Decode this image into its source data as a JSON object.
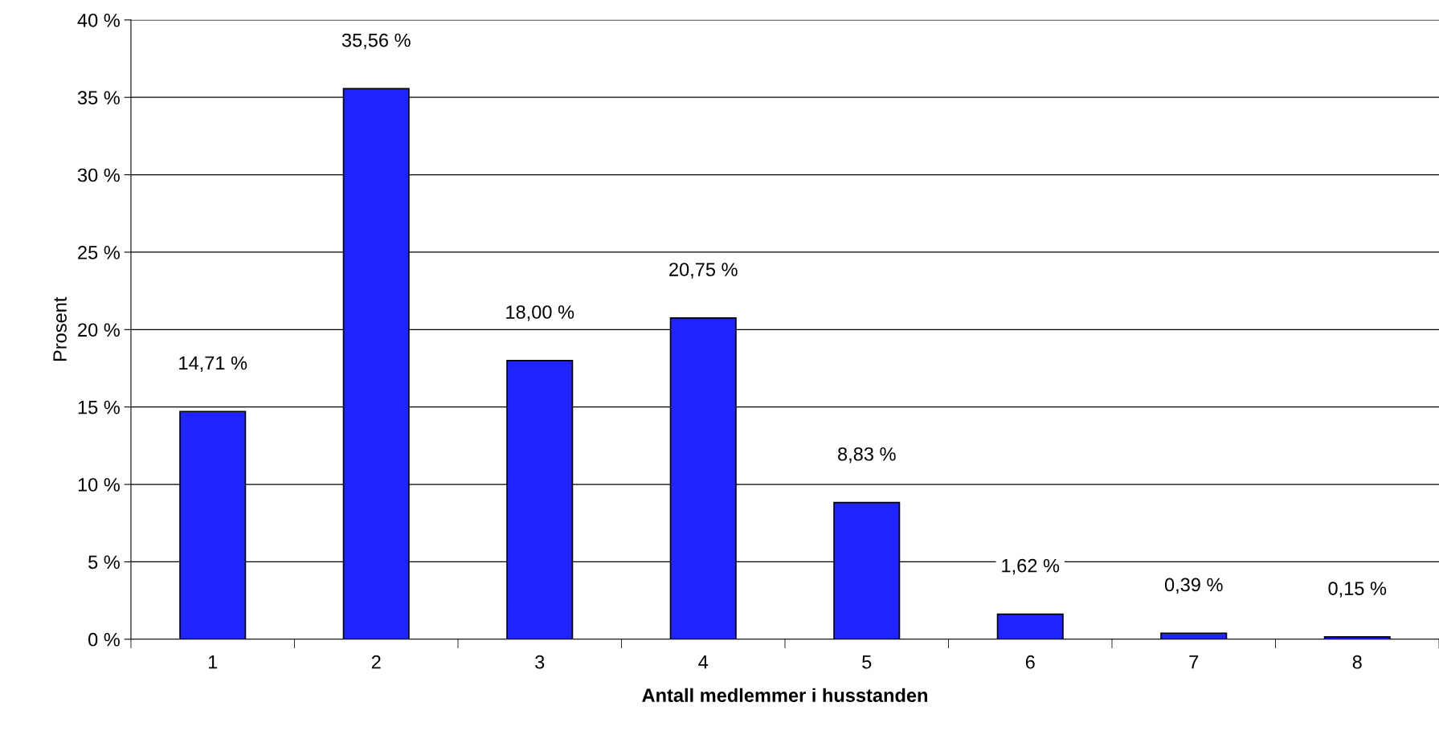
{
  "chart_data": {
    "type": "bar",
    "xlabel": "Antall medlemmer i husstanden",
    "ylabel": "Prosent",
    "categories": [
      "1",
      "2",
      "3",
      "4",
      "5",
      "6",
      "7",
      "8"
    ],
    "values": [
      14.71,
      35.56,
      18.0,
      20.75,
      8.83,
      1.62,
      0.39,
      0.15
    ],
    "value_labels": [
      "14,71 %",
      "35,56 %",
      "18,00 %",
      "20,75 %",
      "8,83 %",
      "1,62 %",
      "0,39 %",
      "0,15 %"
    ],
    "color": "#1f24ff",
    "ylim": [
      0,
      40
    ],
    "yticks": [
      {
        "value": 0,
        "label": "0 %"
      },
      {
        "value": 5,
        "label": "5 %"
      },
      {
        "value": 10,
        "label": "10 %"
      },
      {
        "value": 15,
        "label": "15 %"
      },
      {
        "value": 20,
        "label": "20 %"
      },
      {
        "value": 25,
        "label": "25 %"
      },
      {
        "value": 30,
        "label": "30 %"
      },
      {
        "value": 35,
        "label": "35 %"
      },
      {
        "value": 40,
        "label": "40 %"
      }
    ],
    "grid": "y",
    "legend": false
  }
}
